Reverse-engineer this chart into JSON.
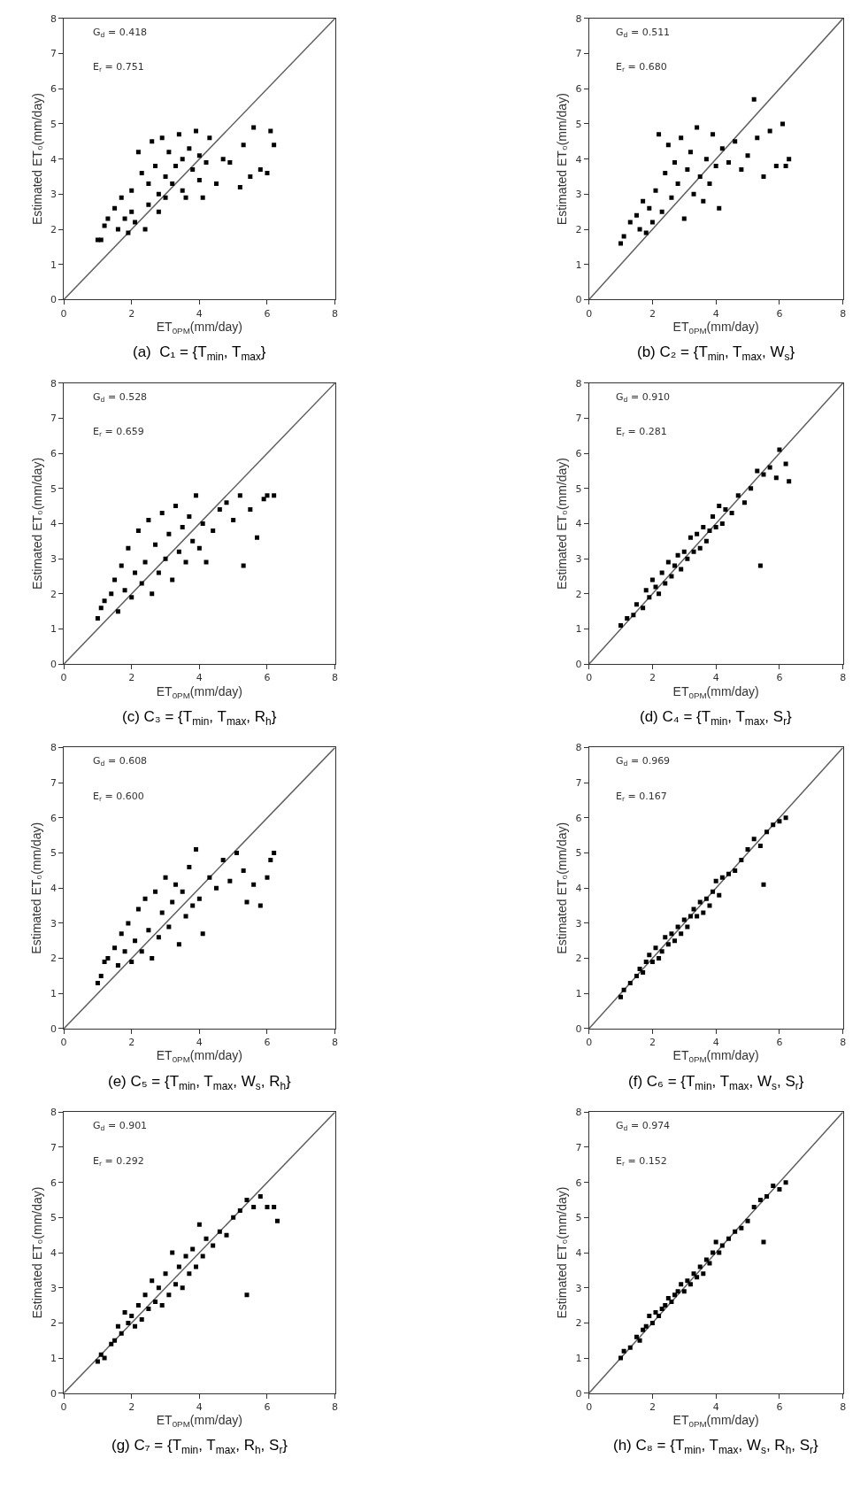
{
  "chart_data": [
    {
      "type": "scatter",
      "title": "(a)  C₁ = {T$_{min}$, T$_{max}$}",
      "xlabel": "ET$_{0PM}$(mm/day)",
      "ylabel": "Estimated ET₀(mm/day)",
      "annotations": [
        "G$_{d}$ = 0.418",
        "E$_{r}$ = 0.751"
      ],
      "xlim": [
        0,
        8
      ],
      "ylim": [
        0,
        8
      ],
      "xticks": [
        0,
        2,
        4,
        6,
        8
      ],
      "yticks": [
        0,
        1,
        2,
        3,
        4,
        5,
        6,
        7,
        8
      ],
      "grid": false,
      "legend": false,
      "marker": "square",
      "series": [
        {
          "type": "scatter",
          "color": "#000000",
          "x": [
            1.0,
            1.1,
            1.2,
            1.3,
            1.5,
            1.6,
            1.7,
            1.8,
            1.9,
            2.0,
            2.0,
            2.1,
            2.2,
            2.3,
            2.4,
            2.5,
            2.5,
            2.6,
            2.7,
            2.8,
            2.8,
            2.9,
            3.0,
            3.0,
            3.1,
            3.2,
            3.3,
            3.4,
            3.5,
            3.5,
            3.6,
            3.7,
            3.8,
            3.9,
            4.0,
            4.0,
            4.1,
            4.2,
            4.3,
            4.5,
            4.7,
            4.9,
            5.2,
            5.3,
            5.5,
            5.6,
            5.8,
            6.0,
            6.1,
            6.2
          ],
          "values": [
            1.7,
            1.7,
            2.1,
            2.3,
            2.6,
            2.0,
            2.9,
            2.3,
            1.9,
            2.5,
            3.1,
            2.2,
            4.2,
            3.6,
            2.0,
            3.3,
            2.7,
            4.5,
            3.8,
            3.0,
            2.5,
            4.6,
            3.5,
            2.9,
            4.2,
            3.3,
            3.8,
            4.7,
            3.1,
            4.0,
            2.9,
            4.3,
            3.7,
            4.8,
            3.4,
            4.1,
            2.9,
            3.9,
            4.6,
            3.3,
            4.0,
            3.9,
            3.2,
            4.4,
            3.5,
            4.9,
            3.7,
            3.6,
            4.8,
            4.4
          ]
        },
        {
          "type": "line",
          "marker": "none",
          "color": "#606060",
          "x": [
            0,
            8
          ],
          "values": [
            0,
            8
          ]
        }
      ]
    },
    {
      "type": "scatter",
      "title": "(b) C₂ = {T$_{min}$, T$_{max}$, W$_{s}$}",
      "xlabel": "ET$_{0PM}$(mm/day)",
      "ylabel": "Estimated ET₀(mm/day)",
      "annotations": [
        "G$_{d}$ = 0.511",
        "E$_{r}$ = 0.680"
      ],
      "xlim": [
        0,
        8
      ],
      "ylim": [
        0,
        8
      ],
      "xticks": [
        0,
        2,
        4,
        6,
        8
      ],
      "yticks": [
        0,
        1,
        2,
        3,
        4,
        5,
        6,
        7,
        8
      ],
      "grid": false,
      "legend": false,
      "marker": "square",
      "series": [
        {
          "type": "scatter",
          "color": "#000000",
          "x": [
            1.0,
            1.1,
            1.3,
            1.5,
            1.6,
            1.7,
            1.8,
            1.9,
            2.0,
            2.1,
            2.2,
            2.3,
            2.4,
            2.5,
            2.6,
            2.7,
            2.8,
            2.9,
            3.0,
            3.1,
            3.2,
            3.3,
            3.4,
            3.5,
            3.6,
            3.7,
            3.8,
            3.9,
            4.0,
            4.1,
            4.2,
            4.4,
            4.6,
            4.8,
            5.0,
            5.2,
            5.3,
            5.5,
            5.7,
            5.9,
            6.1,
            6.2,
            6.3
          ],
          "values": [
            1.6,
            1.8,
            2.2,
            2.4,
            2.0,
            2.8,
            1.9,
            2.6,
            2.2,
            3.1,
            4.7,
            2.5,
            3.6,
            4.4,
            2.9,
            3.9,
            3.3,
            4.6,
            2.3,
            3.7,
            4.2,
            3.0,
            4.9,
            3.5,
            2.8,
            4.0,
            3.3,
            4.7,
            3.8,
            2.6,
            4.3,
            3.9,
            4.5,
            3.7,
            4.1,
            5.7,
            4.6,
            3.5,
            4.8,
            3.8,
            5.0,
            3.8,
            4.0
          ]
        },
        {
          "type": "line",
          "marker": "none",
          "color": "#606060",
          "x": [
            0,
            8
          ],
          "values": [
            0,
            8
          ]
        }
      ]
    },
    {
      "type": "scatter",
      "title": "(c) C₃ = {T$_{min}$, T$_{max}$, R$_{h}$}",
      "xlabel": "ET$_{0PM}$(mm/day)",
      "ylabel": "Estimated ET₀(mm/day)",
      "annotations": [
        "G$_{d}$ = 0.528",
        "E$_{r}$ = 0.659"
      ],
      "xlim": [
        0,
        8
      ],
      "ylim": [
        0,
        8
      ],
      "xticks": [
        0,
        2,
        4,
        6,
        8
      ],
      "yticks": [
        0,
        1,
        2,
        3,
        4,
        5,
        6,
        7,
        8
      ],
      "grid": false,
      "legend": false,
      "marker": "square",
      "series": [
        {
          "type": "scatter",
          "color": "#000000",
          "x": [
            1.0,
            1.1,
            1.2,
            1.4,
            1.5,
            1.6,
            1.7,
            1.8,
            1.9,
            2.0,
            2.1,
            2.2,
            2.3,
            2.4,
            2.5,
            2.6,
            2.7,
            2.8,
            2.9,
            3.0,
            3.1,
            3.2,
            3.3,
            3.4,
            3.5,
            3.6,
            3.7,
            3.8,
            3.9,
            4.0,
            4.1,
            4.2,
            4.4,
            4.6,
            4.8,
            5.0,
            5.2,
            5.3,
            5.5,
            5.7,
            5.9,
            6.0,
            6.2
          ],
          "values": [
            1.3,
            1.6,
            1.8,
            2.0,
            2.4,
            1.5,
            2.8,
            2.1,
            3.3,
            1.9,
            2.6,
            3.8,
            2.3,
            2.9,
            4.1,
            2.0,
            3.4,
            2.6,
            4.3,
            3.0,
            3.7,
            2.4,
            4.5,
            3.2,
            3.9,
            2.9,
            4.2,
            3.5,
            4.8,
            3.3,
            4.0,
            2.9,
            3.8,
            4.4,
            4.6,
            4.1,
            4.8,
            2.8,
            4.4,
            3.6,
            4.7,
            4.8,
            4.8
          ]
        },
        {
          "type": "line",
          "marker": "none",
          "color": "#606060",
          "x": [
            0,
            8
          ],
          "values": [
            0,
            8
          ]
        }
      ]
    },
    {
      "type": "scatter",
      "title": "(d) C₄ = {T$_{min}$, T$_{max}$, S$_{r}$}",
      "xlabel": "ET$_{0PM}$(mm/day)",
      "ylabel": "Estimated ET₀(mm/day)",
      "annotations": [
        "G$_{d}$ = 0.910",
        "E$_{r}$ = 0.281"
      ],
      "xlim": [
        0,
        8
      ],
      "ylim": [
        0,
        8
      ],
      "xticks": [
        0,
        2,
        4,
        6,
        8
      ],
      "yticks": [
        0,
        1,
        2,
        3,
        4,
        5,
        6,
        7,
        8
      ],
      "grid": false,
      "legend": false,
      "marker": "square",
      "series": [
        {
          "type": "scatter",
          "color": "#000000",
          "x": [
            1.0,
            1.2,
            1.4,
            1.5,
            1.7,
            1.8,
            1.9,
            2.0,
            2.1,
            2.2,
            2.3,
            2.4,
            2.5,
            2.6,
            2.7,
            2.8,
            2.9,
            3.0,
            3.1,
            3.2,
            3.3,
            3.4,
            3.5,
            3.6,
            3.7,
            3.8,
            3.9,
            4.0,
            4.1,
            4.2,
            4.3,
            4.5,
            4.7,
            4.9,
            5.1,
            5.3,
            5.4,
            5.5,
            5.7,
            5.9,
            6.0,
            6.2,
            6.3
          ],
          "values": [
            1.1,
            1.3,
            1.4,
            1.7,
            1.6,
            2.1,
            1.9,
            2.4,
            2.2,
            2.0,
            2.6,
            2.3,
            2.9,
            2.5,
            2.8,
            3.1,
            2.7,
            3.2,
            3.0,
            3.6,
            3.2,
            3.7,
            3.3,
            3.9,
            3.5,
            3.8,
            4.2,
            3.9,
            4.5,
            4.0,
            4.4,
            4.3,
            4.8,
            4.6,
            5.0,
            5.5,
            2.8,
            5.4,
            5.6,
            5.3,
            6.1,
            5.7,
            5.2
          ]
        },
        {
          "type": "line",
          "marker": "none",
          "color": "#606060",
          "x": [
            0,
            8
          ],
          "values": [
            0,
            8
          ]
        }
      ]
    },
    {
      "type": "scatter",
      "title": "(e) C₅ = {T$_{min}$, T$_{max}$, W$_{s}$, R$_{h}$}",
      "xlabel": "ET$_{0PM}$(mm/day)",
      "ylabel": "Estimated ET₀(mm/day)",
      "annotations": [
        "G$_{d}$ = 0.608",
        "E$_{r}$ = 0.600"
      ],
      "xlim": [
        0,
        8
      ],
      "ylim": [
        0,
        8
      ],
      "xticks": [
        0,
        2,
        4,
        6,
        8
      ],
      "yticks": [
        0,
        1,
        2,
        3,
        4,
        5,
        6,
        7,
        8
      ],
      "grid": false,
      "legend": false,
      "marker": "square",
      "series": [
        {
          "type": "scatter",
          "color": "#000000",
          "x": [
            1.0,
            1.1,
            1.2,
            1.3,
            1.5,
            1.6,
            1.7,
            1.8,
            1.9,
            2.0,
            2.1,
            2.2,
            2.3,
            2.4,
            2.5,
            2.6,
            2.7,
            2.8,
            2.9,
            3.0,
            3.1,
            3.2,
            3.3,
            3.4,
            3.5,
            3.6,
            3.7,
            3.8,
            3.9,
            4.0,
            4.1,
            4.3,
            4.5,
            4.7,
            4.9,
            5.1,
            5.3,
            5.4,
            5.6,
            5.8,
            6.0,
            6.1,
            6.2
          ],
          "values": [
            1.3,
            1.5,
            1.9,
            2.0,
            2.3,
            1.8,
            2.7,
            2.2,
            3.0,
            1.9,
            2.5,
            3.4,
            2.2,
            3.7,
            2.8,
            2.0,
            3.9,
            2.6,
            3.3,
            4.3,
            2.9,
            3.6,
            4.1,
            2.4,
            3.9,
            3.2,
            4.6,
            3.5,
            5.1,
            3.7,
            2.7,
            4.3,
            4.0,
            4.8,
            4.2,
            5.0,
            4.5,
            3.6,
            4.1,
            3.5,
            4.3,
            4.8,
            5.0
          ]
        },
        {
          "type": "line",
          "marker": "none",
          "color": "#606060",
          "x": [
            0,
            8
          ],
          "values": [
            0,
            8
          ]
        }
      ]
    },
    {
      "type": "scatter",
      "title": "(f) C₆ = {T$_{min}$, T$_{max}$, W$_{s}$, S$_{r}$}",
      "xlabel": "ET$_{0PM}$(mm/day)",
      "ylabel": "Estimated ET₀(mm/day)",
      "annotations": [
        "G$_{d}$ = 0.969",
        "E$_{r}$ = 0.167"
      ],
      "xlim": [
        0,
        8
      ],
      "ylim": [
        0,
        8
      ],
      "xticks": [
        0,
        2,
        4,
        6,
        8
      ],
      "yticks": [
        0,
        1,
        2,
        3,
        4,
        5,
        6,
        7,
        8
      ],
      "grid": false,
      "legend": false,
      "marker": "square",
      "series": [
        {
          "type": "scatter",
          "color": "#000000",
          "x": [
            1.0,
            1.1,
            1.3,
            1.5,
            1.6,
            1.7,
            1.8,
            1.9,
            2.0,
            2.1,
            2.2,
            2.3,
            2.4,
            2.5,
            2.6,
            2.7,
            2.8,
            2.9,
            3.0,
            3.1,
            3.2,
            3.3,
            3.4,
            3.5,
            3.6,
            3.7,
            3.8,
            3.9,
            4.0,
            4.1,
            4.2,
            4.4,
            4.6,
            4.8,
            5.0,
            5.2,
            5.4,
            5.5,
            5.6,
            5.8,
            6.0,
            6.2
          ],
          "values": [
            0.9,
            1.1,
            1.3,
            1.5,
            1.7,
            1.6,
            1.9,
            2.1,
            1.9,
            2.3,
            2.0,
            2.2,
            2.6,
            2.4,
            2.7,
            2.5,
            2.9,
            2.7,
            3.1,
            2.9,
            3.2,
            3.4,
            3.2,
            3.6,
            3.3,
            3.7,
            3.5,
            3.9,
            4.2,
            3.8,
            4.3,
            4.4,
            4.5,
            4.8,
            5.1,
            5.4,
            5.2,
            4.1,
            5.6,
            5.8,
            5.9,
            6.0
          ]
        },
        {
          "type": "line",
          "marker": "none",
          "color": "#606060",
          "x": [
            0,
            8
          ],
          "values": [
            0,
            8
          ]
        }
      ]
    },
    {
      "type": "scatter",
      "title": "(g) C₇ = {T$_{min}$, T$_{max}$, R$_{h}$, S$_{r}$}",
      "xlabel": "ET$_{0PM}$(mm/day)",
      "ylabel": "Estimated ET₀(mm/day)",
      "annotations": [
        "G$_{d}$ = 0.901",
        "E$_{r}$ = 0.292"
      ],
      "xlim": [
        0,
        8
      ],
      "ylim": [
        0,
        8
      ],
      "xticks": [
        0,
        2,
        4,
        6,
        8
      ],
      "yticks": [
        0,
        1,
        2,
        3,
        4,
        5,
        6,
        7,
        8
      ],
      "grid": false,
      "legend": false,
      "marker": "square",
      "series": [
        {
          "type": "scatter",
          "color": "#000000",
          "x": [
            1.0,
            1.1,
            1.2,
            1.4,
            1.5,
            1.6,
            1.7,
            1.8,
            1.9,
            2.0,
            2.1,
            2.2,
            2.3,
            2.4,
            2.5,
            2.6,
            2.7,
            2.8,
            2.9,
            3.0,
            3.1,
            3.2,
            3.3,
            3.4,
            3.5,
            3.6,
            3.7,
            3.8,
            3.9,
            4.0,
            4.1,
            4.2,
            4.4,
            4.6,
            4.8,
            5.0,
            5.2,
            5.4,
            5.4,
            5.6,
            5.8,
            6.0,
            6.2,
            6.3
          ],
          "values": [
            0.9,
            1.1,
            1.0,
            1.4,
            1.5,
            1.9,
            1.7,
            2.3,
            2.0,
            2.2,
            1.9,
            2.5,
            2.1,
            2.8,
            2.4,
            3.2,
            2.6,
            3.0,
            2.5,
            3.4,
            2.8,
            4.0,
            3.1,
            3.6,
            3.0,
            3.9,
            3.4,
            4.1,
            3.6,
            4.8,
            3.9,
            4.4,
            4.2,
            4.6,
            4.5,
            5.0,
            5.2,
            5.5,
            2.8,
            5.3,
            5.6,
            5.3,
            5.3,
            4.9
          ]
        },
        {
          "type": "line",
          "marker": "none",
          "color": "#606060",
          "x": [
            0,
            8
          ],
          "values": [
            0,
            8
          ]
        }
      ]
    },
    {
      "type": "scatter",
      "title": "(h) C₈ = {T$_{min}$, T$_{max}$, W$_{s}$, R$_{h}$, S$_{r}$}",
      "xlabel": "ET$_{0PM}$(mm/day)",
      "ylabel": "Estimated ET₀(mm/day)",
      "annotations": [
        "G$_{d}$ = 0.974",
        "E$_{r}$ = 0.152"
      ],
      "xlim": [
        0,
        8
      ],
      "ylim": [
        0,
        8
      ],
      "xticks": [
        0,
        2,
        4,
        6,
        8
      ],
      "yticks": [
        0,
        1,
        2,
        3,
        4,
        5,
        6,
        7,
        8
      ],
      "grid": false,
      "legend": false,
      "marker": "square",
      "series": [
        {
          "type": "scatter",
          "color": "#000000",
          "x": [
            1.0,
            1.1,
            1.3,
            1.5,
            1.6,
            1.7,
            1.8,
            1.9,
            2.0,
            2.1,
            2.2,
            2.3,
            2.4,
            2.5,
            2.6,
            2.7,
            2.8,
            2.9,
            3.0,
            3.1,
            3.2,
            3.3,
            3.4,
            3.5,
            3.6,
            3.7,
            3.8,
            3.9,
            4.0,
            4.1,
            4.2,
            4.4,
            4.6,
            4.8,
            5.0,
            5.2,
            5.4,
            5.5,
            5.6,
            5.8,
            6.0,
            6.2
          ],
          "values": [
            1.0,
            1.2,
            1.3,
            1.6,
            1.5,
            1.8,
            1.9,
            2.2,
            2.0,
            2.3,
            2.2,
            2.4,
            2.5,
            2.7,
            2.6,
            2.8,
            2.9,
            3.1,
            2.9,
            3.2,
            3.1,
            3.4,
            3.3,
            3.6,
            3.4,
            3.8,
            3.7,
            4.0,
            4.3,
            4.0,
            4.2,
            4.4,
            4.6,
            4.7,
            4.9,
            5.3,
            5.5,
            4.3,
            5.6,
            5.9,
            5.8,
            6.0
          ]
        },
        {
          "type": "line",
          "marker": "none",
          "color": "#606060",
          "x": [
            0,
            8
          ],
          "values": [
            0,
            8
          ]
        }
      ]
    }
  ]
}
